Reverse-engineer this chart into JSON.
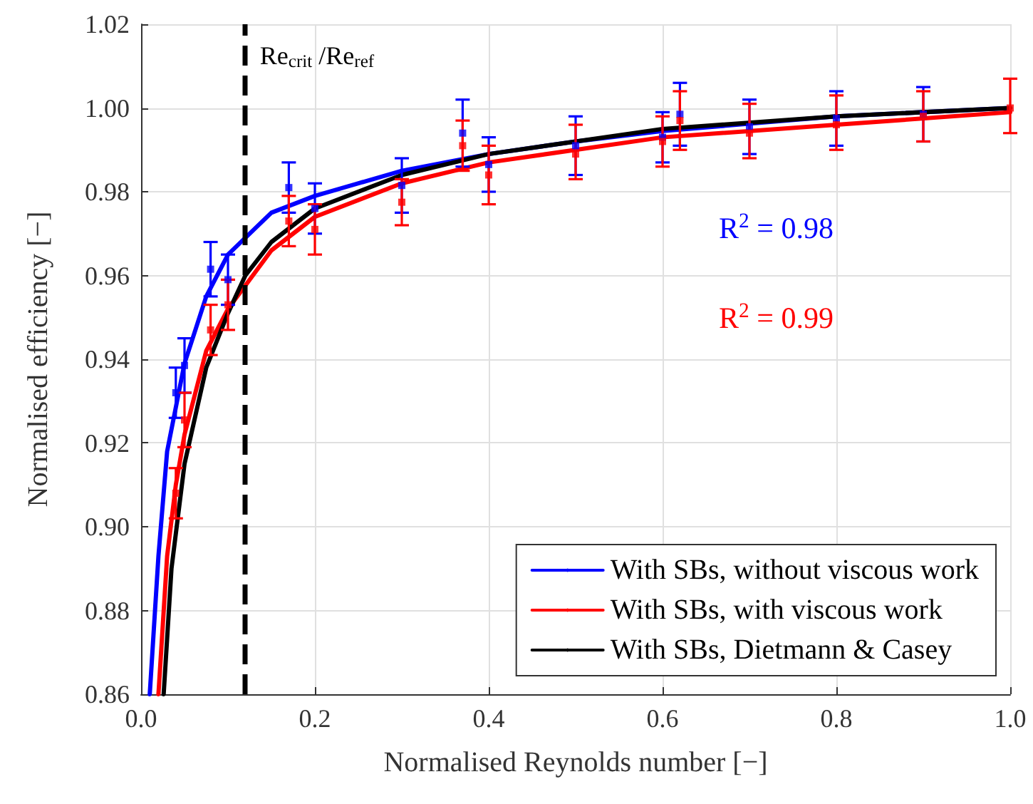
{
  "chart_data": {
    "type": "line",
    "xlabel": "Normalised Reynolds number [−]",
    "ylabel": "Normalised efficiency [−]",
    "xlim": [
      0,
      1
    ],
    "ylim": [
      0.86,
      1.02
    ],
    "xticks": [
      {
        "value": 0,
        "label": "0.0"
      },
      {
        "value": 0.2,
        "label": "0.2"
      },
      {
        "value": 0.4,
        "label": "0.4"
      },
      {
        "value": 0.6,
        "label": "0.6"
      },
      {
        "value": 0.8,
        "label": "0.8"
      },
      {
        "value": 1,
        "label": "1.0"
      }
    ],
    "yticks": [
      {
        "value": 0.86,
        "label": "0.86"
      },
      {
        "value": 0.88,
        "label": "0.88"
      },
      {
        "value": 0.9,
        "label": "0.90"
      },
      {
        "value": 0.92,
        "label": "0.92"
      },
      {
        "value": 0.94,
        "label": "0.94"
      },
      {
        "value": 0.96,
        "label": "0.96"
      },
      {
        "value": 0.98,
        "label": "0.98"
      },
      {
        "value": 1,
        "label": "1.00"
      },
      {
        "value": 1.02,
        "label": "1.02"
      }
    ],
    "grid": true,
    "legend": "bottom right",
    "line_style": "solid",
    "marker": "none",
    "series": [
      {
        "name": "With SBs, without viscous work",
        "color": "#0000ff",
        "x": [
          0.01,
          0.02,
          0.03,
          0.05,
          0.075,
          0.1,
          0.15,
          0.2,
          0.3,
          0.4,
          0.5,
          0.6,
          0.8,
          1.0
        ],
        "values": [
          0.86,
          0.893,
          0.918,
          0.939,
          0.955,
          0.965,
          0.975,
          0.979,
          0.985,
          0.989,
          0.992,
          0.9945,
          0.998,
          1.0
        ]
      },
      {
        "name": "With SBs, with viscous work",
        "color": "#ff0000",
        "x": [
          0.02,
          0.03,
          0.04,
          0.05,
          0.075,
          0.1,
          0.15,
          0.2,
          0.3,
          0.4,
          0.5,
          0.6,
          0.8,
          1.0
        ],
        "values": [
          0.86,
          0.893,
          0.91,
          0.922,
          0.942,
          0.952,
          0.966,
          0.974,
          0.982,
          0.987,
          0.99,
          0.993,
          0.996,
          0.999
        ]
      },
      {
        "name": "With SBs, Dietmann & Casey",
        "color": "#000000",
        "x": [
          0.026,
          0.035,
          0.05,
          0.075,
          0.1,
          0.12,
          0.15,
          0.2,
          0.3,
          0.4,
          0.5,
          0.6,
          0.8,
          1.0
        ],
        "values": [
          0.86,
          0.89,
          0.915,
          0.938,
          0.951,
          0.96,
          0.968,
          0.976,
          0.984,
          0.989,
          0.992,
          0.995,
          0.998,
          1.0
        ]
      },
      {
        "type": "scatter",
        "marker": "square",
        "color": "#0000ff",
        "x": [
          0.04,
          0.05,
          0.08,
          0.1,
          0.17,
          0.2,
          0.3,
          0.37,
          0.4,
          0.5,
          0.6,
          0.62,
          0.7,
          0.8,
          0.9
        ],
        "values": [
          0.932,
          0.9385,
          0.9615,
          0.959,
          0.981,
          0.976,
          0.9815,
          0.994,
          0.9865,
          0.991,
          0.993,
          0.9985,
          0.9955,
          0.9975,
          0.9985
        ],
        "errors": [
          [
            0.926,
            0.938
          ],
          [
            0.932,
            0.945
          ],
          [
            0.955,
            0.968
          ],
          [
            0.953,
            0.965
          ],
          [
            0.975,
            0.987
          ],
          [
            0.97,
            0.982
          ],
          [
            0.975,
            0.988
          ],
          [
            0.986,
            1.002
          ],
          [
            0.98,
            0.993
          ],
          [
            0.984,
            0.998
          ],
          [
            0.987,
            0.999
          ],
          [
            0.991,
            1.006
          ],
          [
            0.989,
            1.002
          ],
          [
            0.991,
            1.004
          ],
          [
            0.992,
            1.005
          ]
        ]
      },
      {
        "type": "scatter",
        "marker": "square",
        "color": "#ff0000",
        "x": [
          0.04,
          0.05,
          0.08,
          0.1,
          0.17,
          0.2,
          0.3,
          0.37,
          0.4,
          0.5,
          0.6,
          0.62,
          0.7,
          0.8,
          0.9,
          1.0
        ],
        "values": [
          0.908,
          0.9255,
          0.947,
          0.953,
          0.973,
          0.971,
          0.9775,
          0.991,
          0.984,
          0.989,
          0.992,
          0.997,
          0.994,
          0.996,
          0.998,
          1.0
        ],
        "errors": [
          [
            0.902,
            0.914
          ],
          [
            0.919,
            0.932
          ],
          [
            0.941,
            0.953
          ],
          [
            0.947,
            0.959
          ],
          [
            0.967,
            0.979
          ],
          [
            0.965,
            0.977
          ],
          [
            0.972,
            0.983
          ],
          [
            0.985,
            0.997
          ],
          [
            0.977,
            0.991
          ],
          [
            0.983,
            0.996
          ],
          [
            0.986,
            0.998
          ],
          [
            0.99,
            1.004
          ],
          [
            0.988,
            1.001
          ],
          [
            0.99,
            1.003
          ],
          [
            0.992,
            1.004
          ],
          [
            0.994,
            1.007
          ]
        ]
      }
    ],
    "ref_lines": [
      {
        "axis": "x",
        "value": 0.117,
        "label": "Re$_{crit}$ /Re$_{ref}$",
        "color": "#000000",
        "line_style": "dashed"
      }
    ],
    "annotations": [
      "R$^{2}$ = 0.98",
      "R$^{2}$ = 0.99"
    ]
  }
}
